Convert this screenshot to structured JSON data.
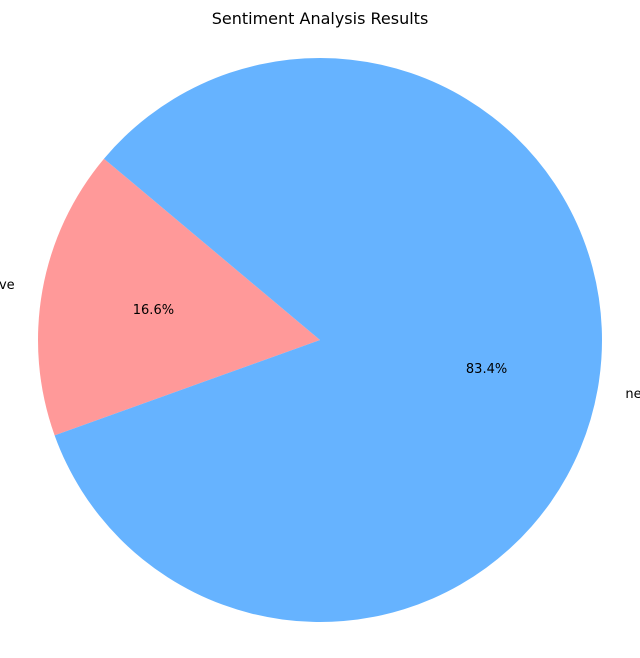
{
  "chart_data": {
    "type": "pie",
    "title": "Sentiment Analysis Results",
    "slices": [
      {
        "label": "positive",
        "value": 16.6,
        "pct_label": "16.6%",
        "color": "#ff9999"
      },
      {
        "label": "negative",
        "value": 83.4,
        "pct_label": "83.4%",
        "color": "#66b3ff"
      }
    ],
    "start_angle_deg": 140,
    "direction": "counterclockwise",
    "legend": "none"
  }
}
